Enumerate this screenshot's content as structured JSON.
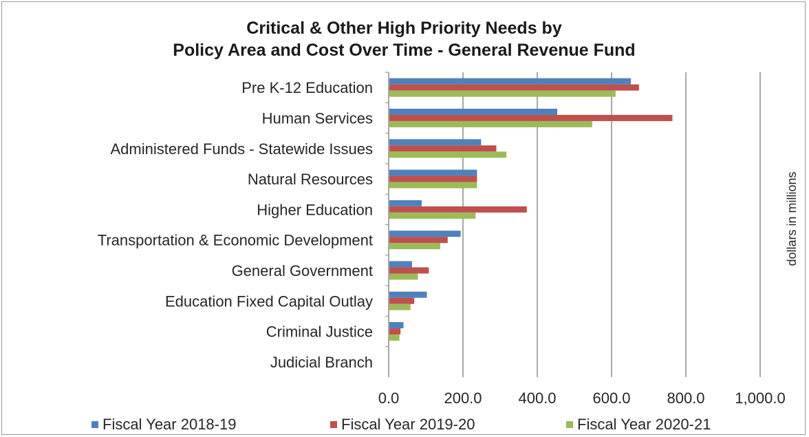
{
  "chart_data": {
    "type": "bar",
    "orientation": "horizontal",
    "title_lines": [
      "Critical & Other High Priority Needs by",
      "Policy Area and Cost Over Time - General Revenue Fund"
    ],
    "categories": [
      "Pre K-12 Education",
      "Human Services",
      "Administered Funds - Statewide Issues",
      "Natural Resources",
      "Higher Education",
      "Transportation & Economic Development",
      "General Government",
      "Education Fixed Capital Outlay",
      "Criminal Justice",
      "Judicial Branch"
    ],
    "series": [
      {
        "name": "Fiscal Year 2018-19",
        "color": "#4f81bd",
        "values": [
          650,
          452,
          247,
          236,
          87,
          192,
          61,
          101,
          38,
          0
        ]
      },
      {
        "name": "Fiscal Year 2019-20",
        "color": "#c0504d",
        "values": [
          672,
          762,
          288,
          236,
          370,
          157,
          106,
          67,
          30,
          0
        ]
      },
      {
        "name": "Fiscal Year 2020-21",
        "color": "#9bbb59",
        "values": [
          609,
          546,
          315,
          236,
          232,
          137,
          77,
          57,
          27,
          0
        ]
      }
    ],
    "xlim": [
      0,
      1000
    ],
    "xticks": [
      "0.0",
      "200.0",
      "400.0",
      "600.0",
      "800.0",
      "1,000.0"
    ],
    "ylabel": "dollars in millions",
    "grid": "vertical",
    "legend": "bottom"
  }
}
